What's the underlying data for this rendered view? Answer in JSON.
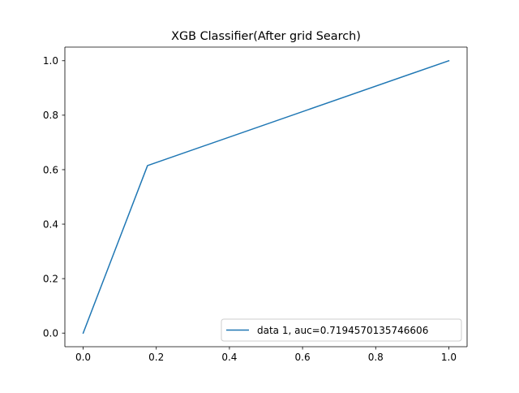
{
  "chart_data": {
    "type": "line",
    "title": "XGB Classifier(After grid Search)",
    "xlabel": "",
    "ylabel": "",
    "xlim": [
      -0.05,
      1.05
    ],
    "ylim": [
      -0.05,
      1.05
    ],
    "xticks": [
      0.0,
      0.2,
      0.4,
      0.6,
      0.8,
      1.0
    ],
    "yticks": [
      0.0,
      0.2,
      0.4,
      0.6,
      0.8,
      1.0
    ],
    "xtick_labels": [
      "0.0",
      "0.2",
      "0.4",
      "0.6",
      "0.8",
      "1.0"
    ],
    "ytick_labels": [
      "0.0",
      "0.2",
      "0.4",
      "0.6",
      "0.8",
      "1.0"
    ],
    "grid": false,
    "legend_position": "lower-right",
    "series": [
      {
        "name": "data 1, auc=0.7194570135746606",
        "color": "#1f77b4",
        "x": [
          0.0,
          0.176,
          1.0
        ],
        "y": [
          0.0,
          0.615,
          1.0
        ]
      }
    ]
  }
}
